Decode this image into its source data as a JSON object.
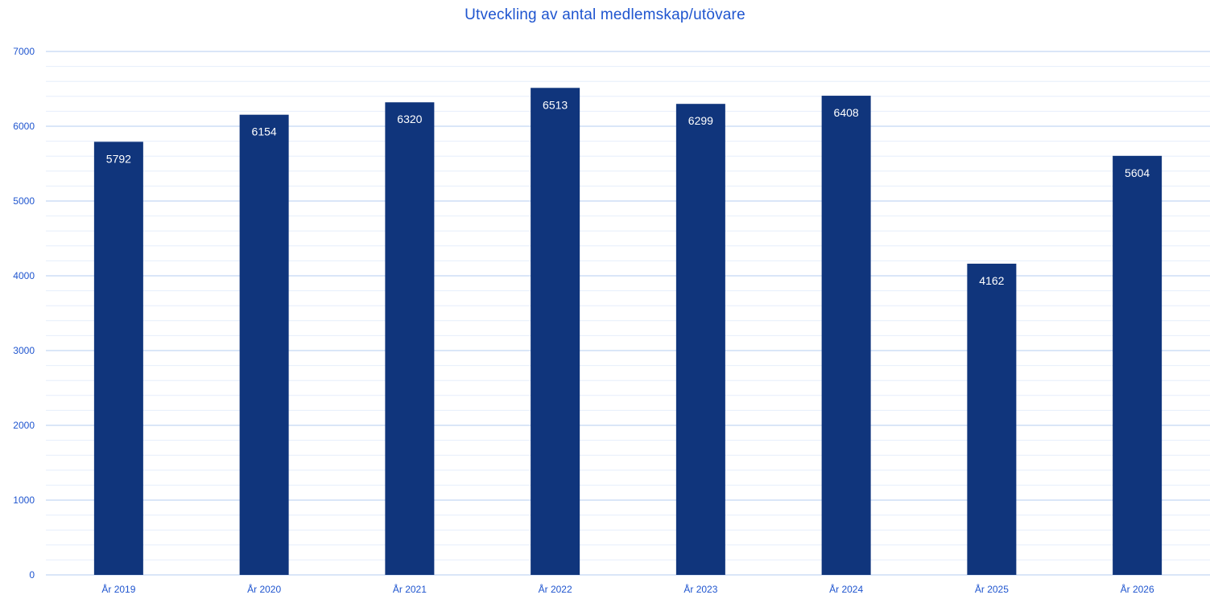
{
  "chart_data": {
    "type": "bar",
    "title": "Utveckling av antal medlemskap/utövare",
    "categories": [
      "År 2019",
      "År 2020",
      "År 2021",
      "År 2022",
      "År 2023",
      "År 2024",
      "År 2025",
      "År 2026"
    ],
    "values": [
      5792,
      6154,
      6320,
      6513,
      6299,
      6408,
      4162,
      5604
    ],
    "ylim": [
      0,
      7000
    ],
    "yticks": [
      0,
      1000,
      2000,
      3000,
      4000,
      5000,
      6000,
      7000
    ],
    "minor_step": 200,
    "xlabel": "",
    "ylabel": "",
    "grid": true,
    "data_labels": true
  },
  "colors": {
    "bar": "#10357c",
    "major_grid": "#b6cdf1",
    "minor_grid": "#e6eefb",
    "text": "#1f55cf",
    "bar_label": "#ffffff"
  }
}
